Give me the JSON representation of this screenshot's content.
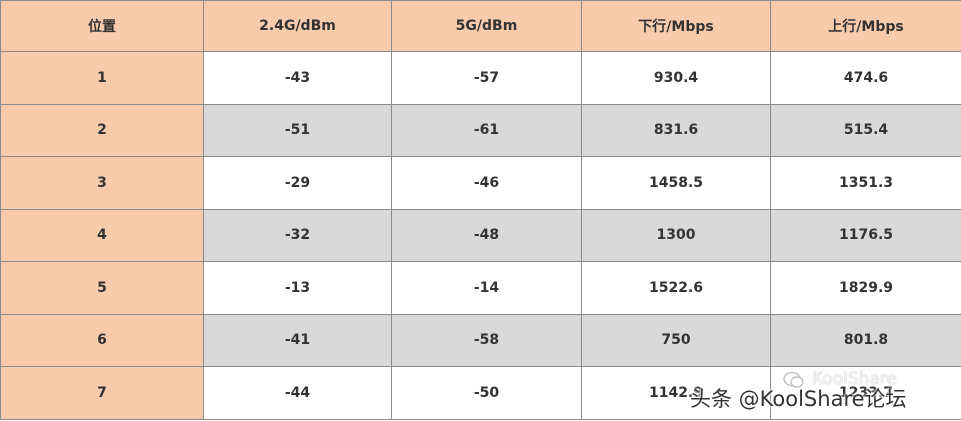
{
  "table": {
    "header": [
      "位置",
      "2.4G/dBm",
      "5G/dBm",
      "下行/Mbps",
      "上行/Mbps"
    ],
    "rows": [
      [
        "1",
        "-43",
        "-57",
        "930.4",
        "474.6"
      ],
      [
        "2",
        "-51",
        "-61",
        "831.6",
        "515.4"
      ],
      [
        "3",
        "-29",
        "-46",
        "1458.5",
        "1351.3"
      ],
      [
        "4",
        "-32",
        "-48",
        "1300",
        "1176.5"
      ],
      [
        "5",
        "-13",
        "-14",
        "1522.6",
        "1829.9"
      ],
      [
        "6",
        "-41",
        "-58",
        "750",
        "801.8"
      ],
      [
        "7",
        "-44",
        "-50",
        "1142.9",
        "1233.7"
      ]
    ]
  },
  "watermark": {
    "main": "头条 @KoolShare论坛",
    "faint": "KoolShare"
  }
}
